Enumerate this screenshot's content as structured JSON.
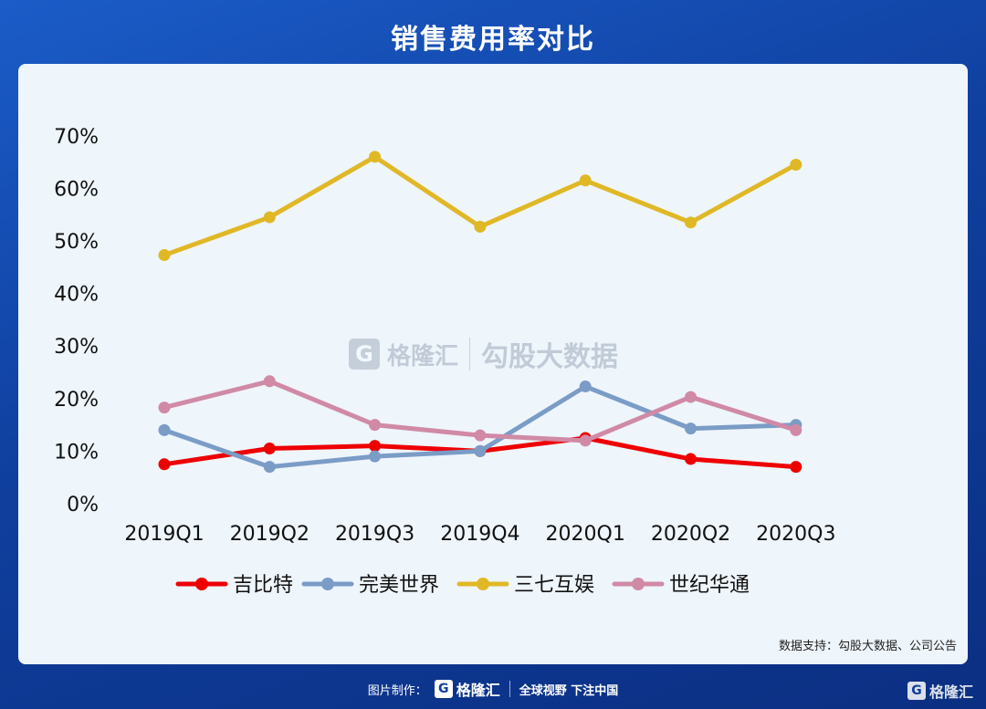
{
  "header": {
    "title": "销售费用率对比"
  },
  "watermark": {
    "logo_letter": "G",
    "brand": "格隆汇",
    "tagline": "勾股大数据"
  },
  "source_note": "数据支持：勾股大数据、公司公告",
  "footer": {
    "made_by": "图片制作：",
    "logo_letter": "G",
    "brand": "格隆汇",
    "slogan": "全球视野 下注中国"
  },
  "corner": {
    "logo_letter": "G",
    "brand": "格隆汇"
  },
  "chart_data": {
    "type": "line",
    "title": "销售费用率对比",
    "xlabel": "",
    "ylabel": "",
    "categories": [
      "2019Q1",
      "2019Q2",
      "2019Q3",
      "2019Q4",
      "2020Q1",
      "2020Q2",
      "2020Q3"
    ],
    "y_ticks": [
      "0%",
      "10%",
      "20%",
      "30%",
      "40%",
      "50%",
      "60%",
      "70%"
    ],
    "ylim": [
      0,
      70
    ],
    "grid": false,
    "legend_position": "bottom",
    "series": [
      {
        "name": "吉比特",
        "color": "#ee0000",
        "values": [
          7.5,
          10.5,
          11.0,
          10.0,
          12.5,
          8.5,
          7.0
        ]
      },
      {
        "name": "完美世界",
        "color": "#7a9cc6",
        "values": [
          14.0,
          7.0,
          9.0,
          10.0,
          22.3,
          14.3,
          15.0
        ]
      },
      {
        "name": "三七互娱",
        "color": "#e0b826",
        "values": [
          47.3,
          54.5,
          66.0,
          52.7,
          61.5,
          53.5,
          64.5
        ]
      },
      {
        "name": "世纪华通",
        "color": "#d08aa6",
        "values": [
          18.3,
          23.3,
          15.0,
          13.0,
          12.0,
          20.3,
          14.0
        ]
      }
    ]
  }
}
